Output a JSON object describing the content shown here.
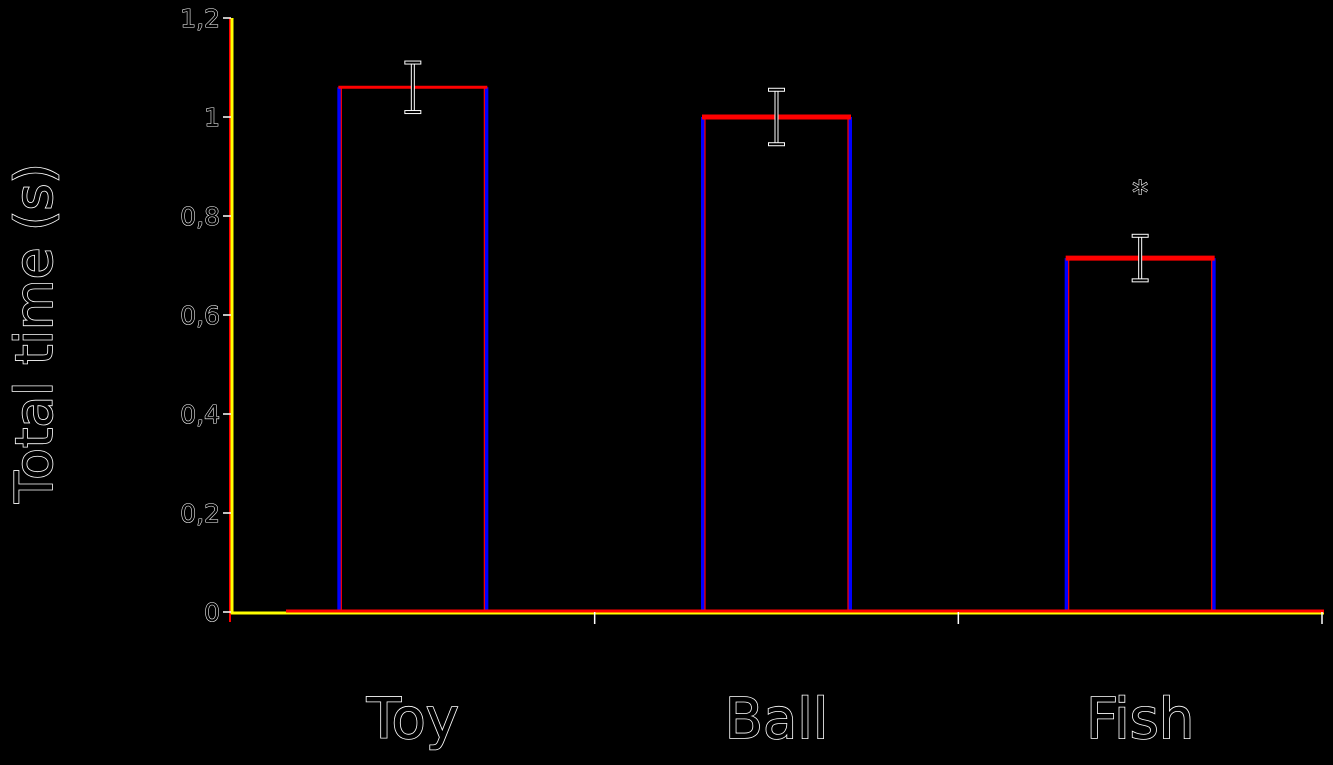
{
  "chart_data": {
    "type": "bar",
    "title": "",
    "xlabel": "",
    "ylabel": "Total time (s)",
    "categories": [
      "Toy",
      "Ball",
      "Fish"
    ],
    "values": [
      1.06,
      1.0,
      0.715
    ],
    "error": [
      0.05,
      0.055,
      0.045
    ],
    "annotations": [
      {
        "category": "Fish",
        "text": "*",
        "y": 0.87
      }
    ],
    "ylim": [
      0,
      1.2
    ],
    "yticks": [
      0,
      0.2,
      0.4,
      0.6,
      0.8,
      1,
      1.2
    ],
    "ytick_labels": [
      "0",
      "0,2",
      "0,4",
      "0,6",
      "0,8",
      "1",
      "1,2"
    ],
    "grid": false,
    "legend": "none",
    "colors": {
      "background": "#000000",
      "bar_side": "#0000ff",
      "bar_top": "#ff0000",
      "axis": "#ffff00",
      "baseline": "#ff0000",
      "text": "#ffffff"
    }
  }
}
